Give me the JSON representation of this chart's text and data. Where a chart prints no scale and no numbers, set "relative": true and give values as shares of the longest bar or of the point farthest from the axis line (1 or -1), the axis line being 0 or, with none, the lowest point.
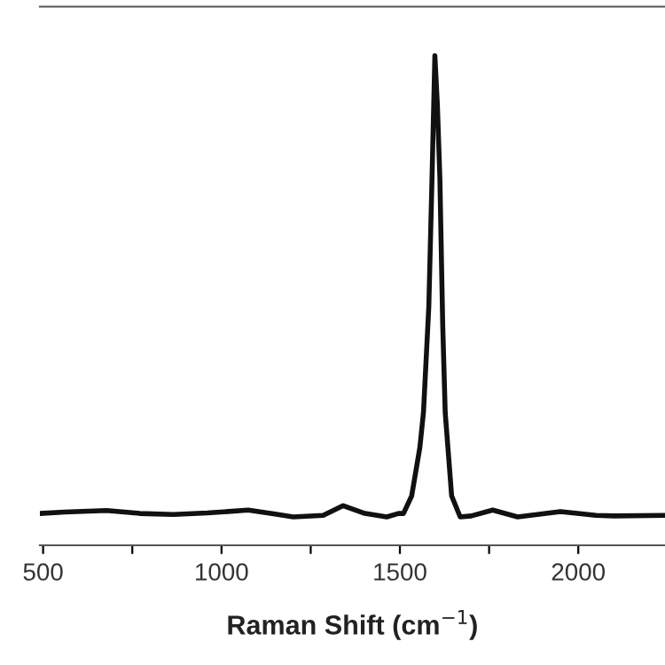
{
  "chart_data": {
    "type": "line",
    "xlabel": "Raman Shift (cm$^{−1}$)",
    "relative": true,
    "color": "#111111",
    "line_style": "solid",
    "marker": "none",
    "grid": false,
    "tick_labels": "x",
    "xlim": [
      491,
      2243
    ],
    "xticks": [
      500,
      {
        "value": 750,
        "label": null
      },
      1000,
      {
        "value": 1250,
        "label": null
      },
      1500,
      {
        "value": 1750,
        "label": null
      },
      2000
    ],
    "x": [
      491,
      560,
      678,
      771,
      865,
      960,
      1075,
      1150,
      1201,
      1285,
      1341,
      1402,
      1463,
      1496,
      1510,
      1533,
      1556,
      1566,
      1581,
      1590,
      1598,
      1605,
      1612,
      1620,
      1627,
      1645,
      1669,
      1700,
      1760,
      1830,
      1950,
      2050,
      2100,
      2240
    ],
    "values": [
      0.065,
      0.068,
      0.071,
      0.065,
      0.063,
      0.066,
      0.072,
      0.064,
      0.058,
      0.061,
      0.081,
      0.065,
      0.058,
      0.065,
      0.065,
      0.101,
      0.2,
      0.271,
      0.487,
      0.75,
      1,
      0.9,
      0.751,
      0.45,
      0.271,
      0.101,
      0.058,
      0.06,
      0.072,
      0.058,
      0.069,
      0.061,
      0.06,
      0.061
    ]
  }
}
